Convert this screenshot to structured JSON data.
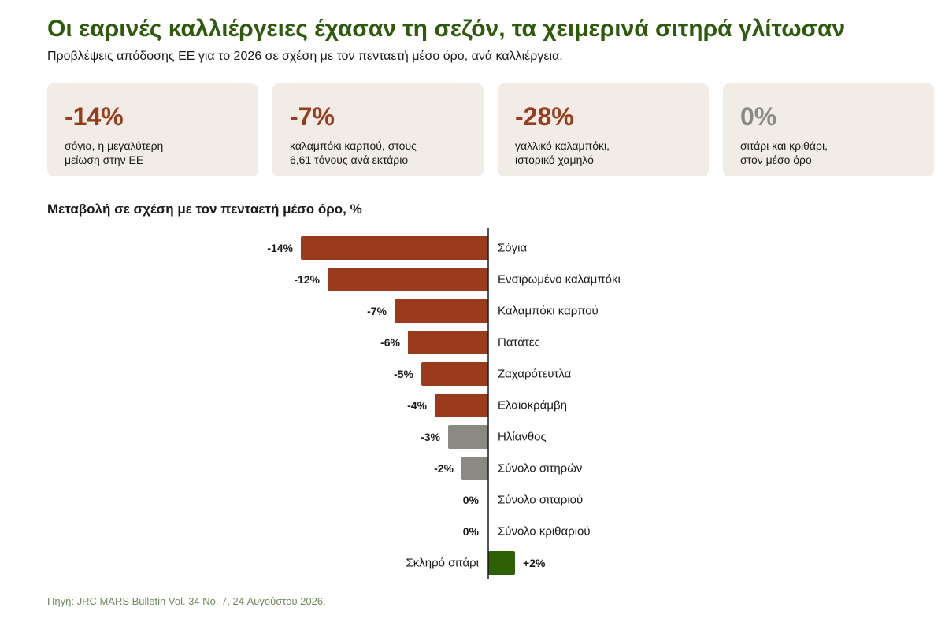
{
  "header": {
    "title": "Οι εαρινές καλλιέργειες έχασαν τη σεζόν, τα χειμερινά σιτηρά γλίτωσαν",
    "subtitle": "Προβλέψεις απόδοσης ΕΕ για το 2026 σε σχέση με τον πενταετή μέσο όρο, ανά καλλιέργεια."
  },
  "cards": [
    {
      "value": "-14%",
      "line1": "σόγια, η μεγαλύτερη",
      "line2": "μείωση στην ΕΕ",
      "color": "#9a3b1d"
    },
    {
      "value": "-7%",
      "line1": "καλαμπόκι καρπού, στους",
      "line2": "6,61 τόνους ανά εκτάριο",
      "color": "#9a3b1d"
    },
    {
      "value": "-28%",
      "line1": "γαλλικό καλαμπόκι,",
      "line2": "ιστορικό χαμηλό",
      "color": "#9a3b1d"
    },
    {
      "value": "0%",
      "line1": "σιτάρι και κριθάρι,",
      "line2": "στον μέσο όρο",
      "color": "#8a8a82"
    }
  ],
  "chart_title": "Μεταβολή σε σχέση με τον πενταετή μέσο όρο, %",
  "chart_data": {
    "type": "bar",
    "orientation": "horizontal",
    "title": "Μεταβολή σε σχέση με τον πενταετή μέσο όρο, %",
    "categories": [
      "Σόγια",
      "Ενσιρωμένο καλαμπόκι",
      "Καλαμπόκι καρπού",
      "Πατάτες",
      "Ζαχαρότευτλα",
      "Ελαιοκράμβη",
      "Ηλίανθος",
      "Σύνολο σιτηρών",
      "Σύνολο σιταριού",
      "Σύνολο κριθαριού",
      "Σκληρό σιτάρι"
    ],
    "values": [
      -14,
      -12,
      -7,
      -6,
      -5,
      -4,
      -3,
      -2,
      0,
      0,
      2
    ],
    "value_labels": [
      "-14%",
      "-12%",
      "-7%",
      "-6%",
      "-5%",
      "-4%",
      "-3%",
      "-2%",
      "0%",
      "0%",
      "+2%"
    ],
    "bar_colors": [
      "#9a3b1d",
      "#9a3b1d",
      "#9a3b1d",
      "#9a3b1d",
      "#9a3b1d",
      "#9a3b1d",
      "#8a8a82",
      "#8a8a82",
      "#8a8a82",
      "#8a8a82",
      "#2e6006"
    ],
    "xlabel": "",
    "ylabel": "",
    "grid": false,
    "legend": "none"
  },
  "source": "Πηγή: JRC MARS Bulletin Vol. 34 No. 7, 24 Αυγούστου 2026."
}
